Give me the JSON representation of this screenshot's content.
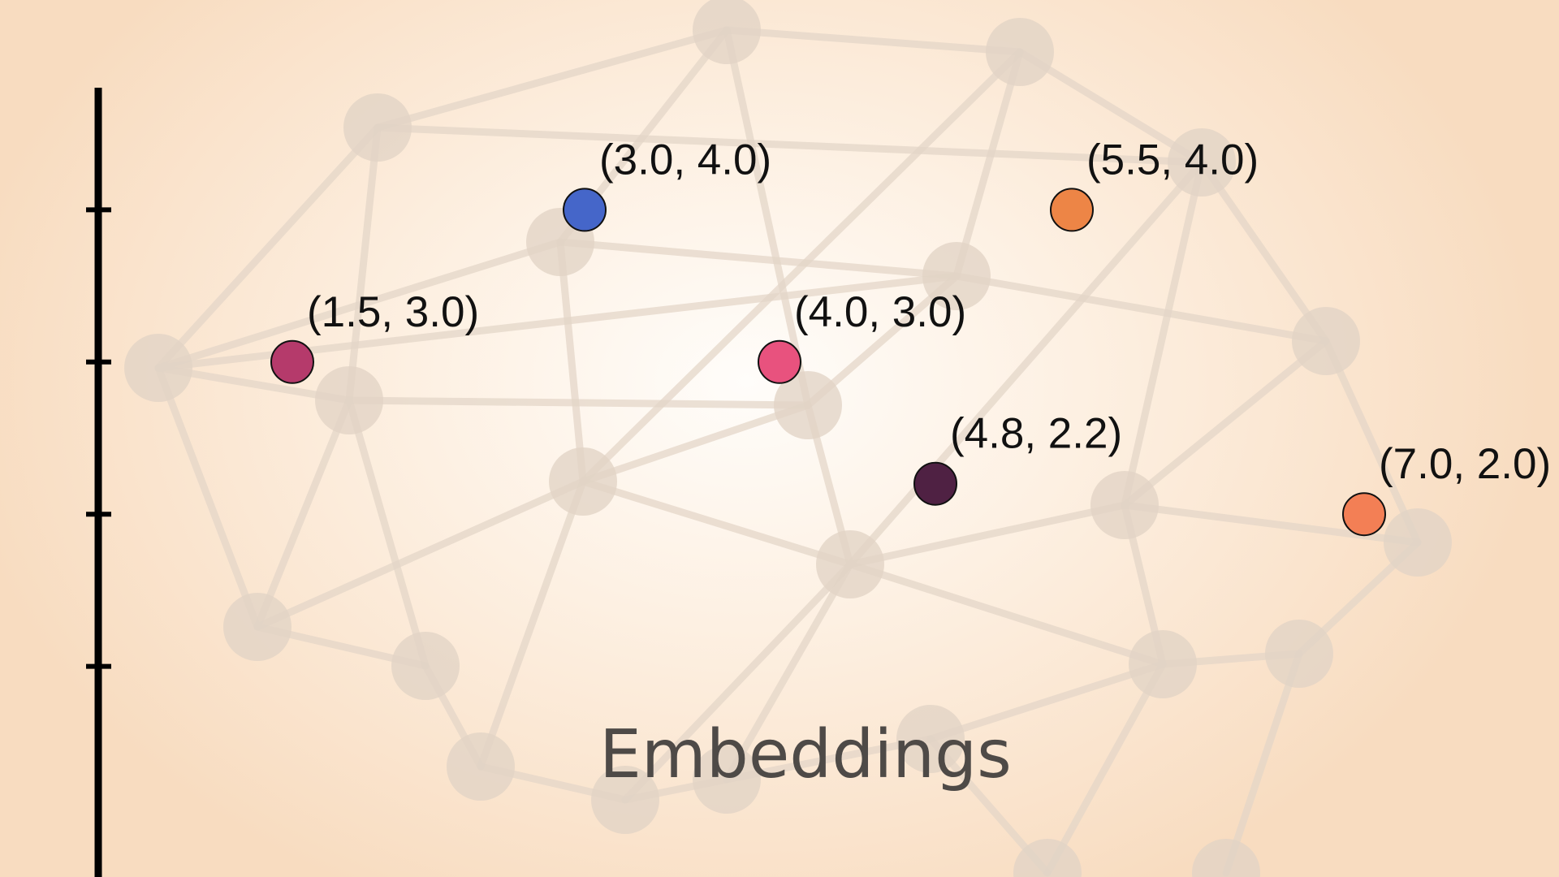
{
  "chart_data": {
    "type": "scatter",
    "title": "Embeddings",
    "xlabel": "",
    "ylabel": "",
    "xlim": [
      0,
      8
    ],
    "ylim": [
      0,
      5
    ],
    "grid": false,
    "points": [
      {
        "x": 3.0,
        "y": 4.0,
        "label": "(3.0, 4.0)",
        "color": "#4566c9"
      },
      {
        "x": 5.5,
        "y": 4.0,
        "label": "(5.5, 4.0)",
        "color": "#ed8546"
      },
      {
        "x": 1.5,
        "y": 3.0,
        "label": "(1.5, 3.0)",
        "color": "#b53a6b"
      },
      {
        "x": 4.0,
        "y": 3.0,
        "label": "(4.0, 3.0)",
        "color": "#e8527e"
      },
      {
        "x": 4.8,
        "y": 2.2,
        "label": "(4.8, 2.2)",
        "color": "#4f2143"
      },
      {
        "x": 7.0,
        "y": 2.0,
        "label": "(7.0, 2.0)",
        "color": "#f37f55"
      }
    ]
  },
  "colors": {
    "background": "#fbe6d2",
    "network": "#e2d3c5",
    "axis": "#000000",
    "title_text": "#4e4a47"
  }
}
